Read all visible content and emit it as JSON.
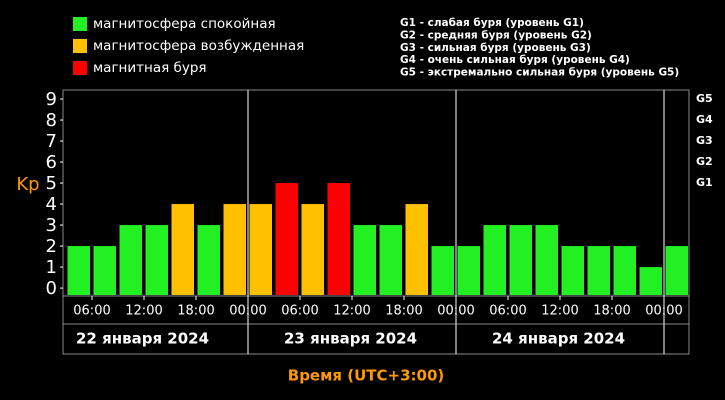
{
  "chart_data": {
    "type": "bar",
    "legend": [
      {
        "label": "магнитосфера спокойная",
        "color": "#22f022"
      },
      {
        "label": "магнитосфера возбужденная",
        "color": "#ffc000"
      },
      {
        "label": "магнитная буря",
        "color": "#ff0000"
      }
    ],
    "storm_legend": [
      "G1 - слабая буря (уровень G1)",
      "G2 - средняя буря (уровень G2)",
      "G3 - сильная буря (уровень G3)",
      "G4 - очень сильная буря (уровень G4)",
      "G5 - экстремально сильная буря (уровень G5)"
    ],
    "y_label": "Kp",
    "x_label": "Время (UTC+3:00)",
    "ylim": [
      -0.33,
      9.43
    ],
    "yticks": [
      0,
      1,
      2,
      3,
      4,
      5,
      6,
      7,
      8,
      9
    ],
    "y2lim": [
      -0.33,
      9.43
    ],
    "y2ticks": [
      {
        "value": 5,
        "label": "G1"
      },
      {
        "value": 6,
        "label": "G2"
      },
      {
        "value": 7,
        "label": "G3"
      },
      {
        "value": 8,
        "label": "G4"
      },
      {
        "value": 9,
        "label": "G5"
      }
    ],
    "xtick_labels": [
      "06:00",
      "12:00",
      "18:00",
      "00:00",
      "06:00",
      "12:00",
      "18:00",
      "00:00",
      "06:00",
      "12:00",
      "18:00",
      "00:00"
    ],
    "days": [
      "22 января 2024",
      "23 января 2024",
      "24 января 2024"
    ],
    "series": [
      {
        "name": "Kp",
        "values": [
          2,
          2,
          3,
          3,
          4,
          3,
          4,
          4,
          5,
          4,
          5,
          3,
          3,
          4,
          2,
          2,
          3,
          3,
          3,
          2,
          2,
          2,
          1,
          2
        ],
        "colors": [
          "#22f022",
          "#22f022",
          "#22f022",
          "#22f022",
          "#ffc000",
          "#22f022",
          "#ffc000",
          "#ffc000",
          "#ff0000",
          "#ffc000",
          "#ff0000",
          "#22f022",
          "#22f022",
          "#ffc000",
          "#22f022",
          "#22f022",
          "#22f022",
          "#22f022",
          "#22f022",
          "#22f022",
          "#22f022",
          "#22f022",
          "#22f022",
          "#22f022"
        ]
      }
    ]
  }
}
